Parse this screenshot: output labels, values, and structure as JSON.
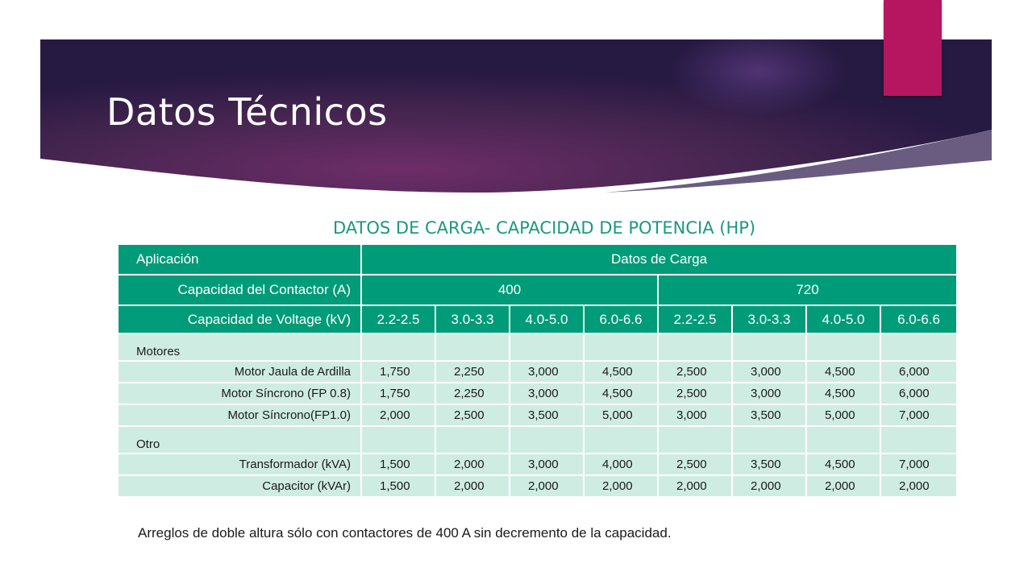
{
  "slide": {
    "title": "Datos Técnicos",
    "colors": {
      "banner_dark": "#2a1a45",
      "banner_light": "#6b2d66",
      "accent": "#b5165f",
      "table_header": "#009b78",
      "table_body": "#cfece3",
      "heading_text": "#1a9980"
    }
  },
  "table": {
    "heading": "DATOS DE CARGA- CAPACIDAD DE POTENCIA (HP)",
    "header": {
      "application_label": "Aplicación",
      "load_data_label": "Datos de Carga",
      "contactor_label": "Capacidad del Contactor (A)",
      "contactor_values": [
        "400",
        "720"
      ],
      "voltage_label": "Capacidad de Voltage (kV)",
      "voltage_ranges": [
        "2.2-2.5",
        "3.0-3.3",
        "4.0-5.0",
        "6.0-6.6",
        "2.2-2.5",
        "3.0-3.3",
        "4.0-5.0",
        "6.0-6.6"
      ]
    },
    "groups": [
      {
        "category": "Motores",
        "rows": [
          {
            "name": "Motor Jaula de Ardilla",
            "values": [
              "1,750",
              "2,250",
              "3,000",
              "4,500",
              "2,500",
              "3,000",
              "4,500",
              "6,000"
            ]
          },
          {
            "name": "Motor Síncrono (FP 0.8)",
            "values": [
              "1,750",
              "2,250",
              "3,000",
              "4,500",
              "2,500",
              "3,000",
              "4,500",
              "6,000"
            ]
          },
          {
            "name": "Motor Síncrono(FP1.0)",
            "values": [
              "2,000",
              "2,500",
              "3,500",
              "5,000",
              "3,000",
              "3,500",
              "5,000",
              "7,000"
            ]
          }
        ]
      },
      {
        "category": "Otro",
        "rows": [
          {
            "name": "Transformador (kVA)",
            "values": [
              "1,500",
              "2,000",
              "3,000",
              "4,000",
              "2,500",
              "3,500",
              "4,500",
              "7,000"
            ]
          },
          {
            "name": "Capacitor (kVAr)",
            "values": [
              "1,500",
              "2,000",
              "2,000",
              "2,000",
              "2,000",
              "2,000",
              "2,000",
              "2,000"
            ]
          }
        ]
      }
    ],
    "footnote": "Arreglos de doble altura sólo con contactores de 400 A sin decremento de la capacidad."
  }
}
